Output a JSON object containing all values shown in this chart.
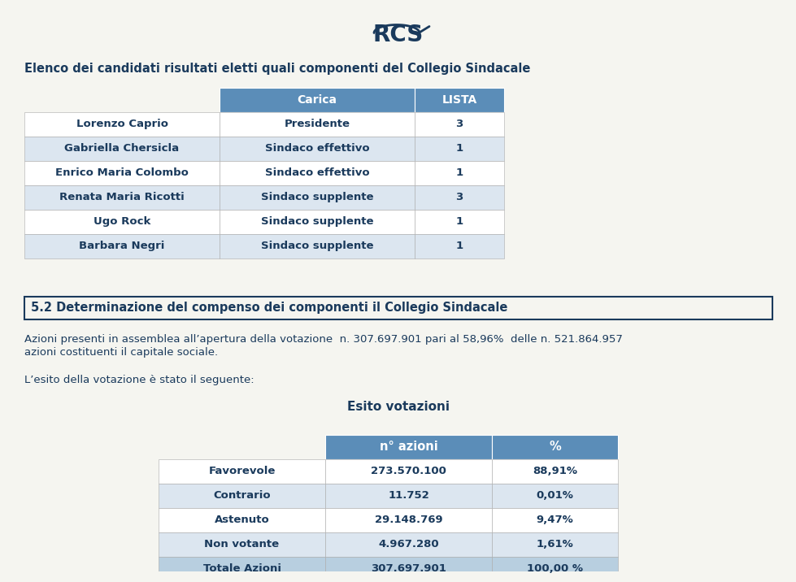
{
  "title_top": "Elenco dei candidati risultati eletti quali componenti del Collegio Sindacale",
  "section_header": "5.2 Determinazione del compenso dei componenti il Collegio Sindacale",
  "paragraph1a": "Azioni presenti in assemblea all’apertura della votazione  n. 307.697.901 pari al 58,96%  delle n. 521.864.957",
  "paragraph1b": "azioni costituenti il capitale sociale.",
  "paragraph2": "L’esito della votazione è stato il seguente:",
  "esito_title": "Esito votazioni",
  "table1_headers": [
    "Carica",
    "LISTA"
  ],
  "table1_rows": [
    [
      "Lorenzo Caprio",
      "Presidente",
      "3"
    ],
    [
      "Gabriella Chersicla",
      "Sindaco effettivo",
      "1"
    ],
    [
      "Enrico Maria Colombo",
      "Sindaco effettivo",
      "1"
    ],
    [
      "Renata Maria Ricotti",
      "Sindaco supplente",
      "3"
    ],
    [
      "Ugo Rock",
      "Sindaco supplente",
      "1"
    ],
    [
      "Barbara Negri",
      "Sindaco supplente",
      "1"
    ]
  ],
  "table2_headers": [
    "n° azioni",
    "%"
  ],
  "table2_rows": [
    [
      "Favorevole",
      "273.570.100",
      "88,91%"
    ],
    [
      "Contrario",
      "11.752",
      "0,01%"
    ],
    [
      "Astenuto",
      "29.148.769",
      "9,47%"
    ],
    [
      "Non votante",
      "4.967.280",
      "1,61%"
    ],
    [
      "Totale Azioni",
      "307.697.901",
      "100,00 %"
    ]
  ],
  "header_bg": "#5b8db8",
  "header_text": "#ffffff",
  "row_bg_white": "#ffffff",
  "row_bg_blue": "#dce6f0",
  "row_text": "#1a3a5c",
  "section_box_color": "#1a3a5c",
  "bg_color": "#f5f5f0",
  "total_row_bg": "#b8cfe0",
  "logo_color": "#1a3a5c"
}
